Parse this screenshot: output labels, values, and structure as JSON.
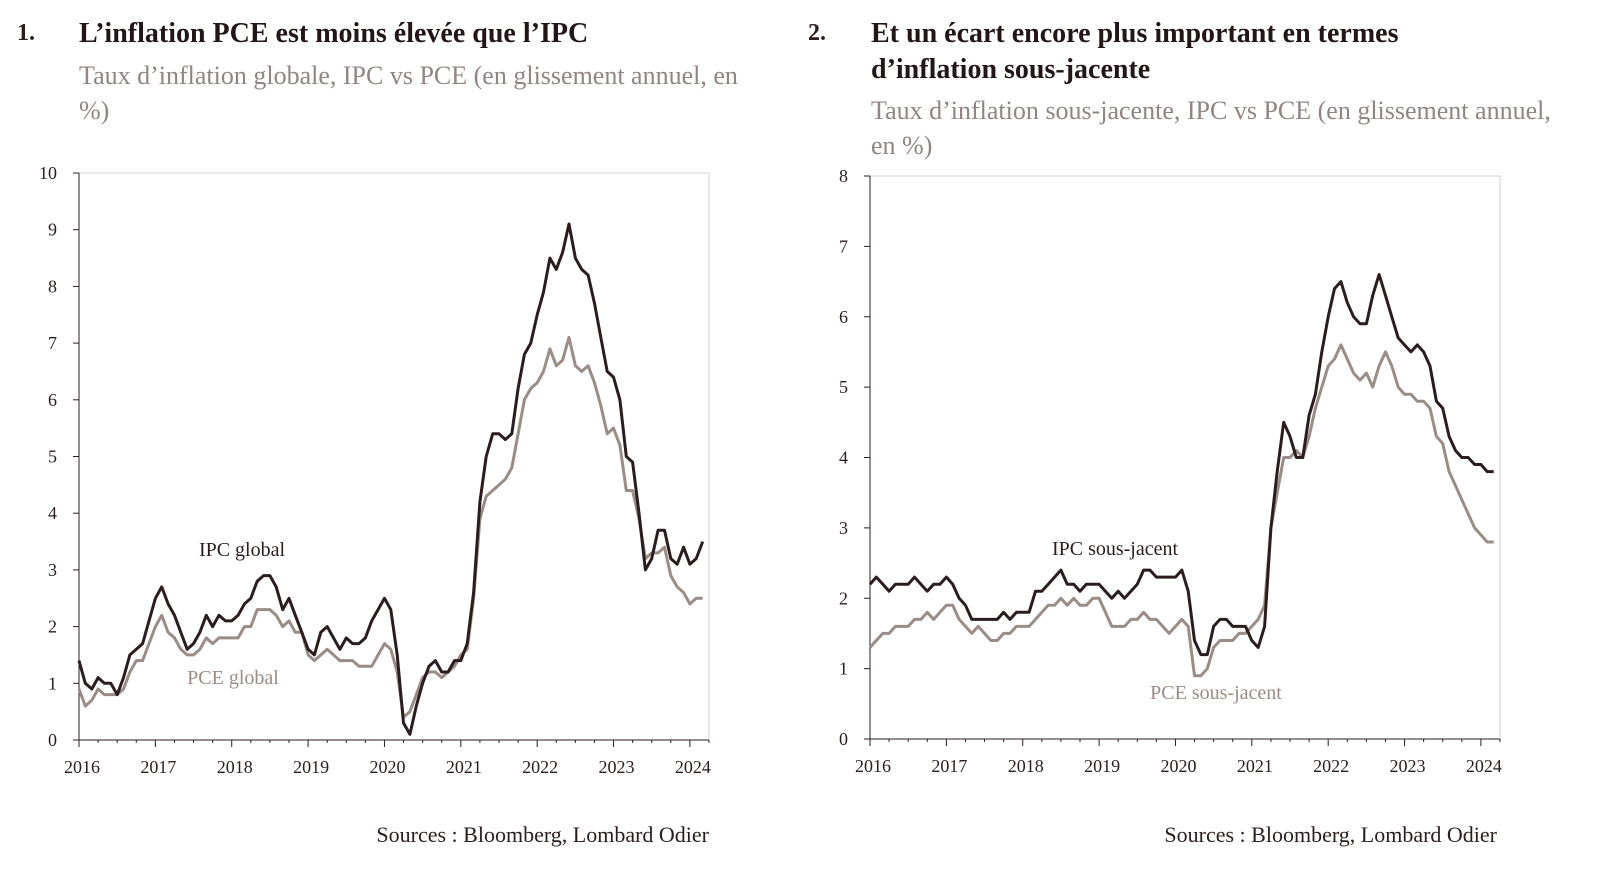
{
  "colors": {
    "ipc": "#2b1d1d",
    "pce": "#9a8c86",
    "title": "#231616",
    "subtitle": "#8f8683"
  },
  "chart_data": [
    {
      "type": "line",
      "number": "1.",
      "title": "L’inflation PCE est moins élevée que l’IPC",
      "subtitle": "Taux d’inflation globale, IPC vs PCE (en glissement annuel, en %)",
      "source": "Sources : Bloomberg, Lombard Odier",
      "ylim": [
        0,
        10
      ],
      "yticks": [
        "0",
        "1",
        "2",
        "3",
        "4",
        "5",
        "6",
        "7",
        "8",
        "9",
        "10"
      ],
      "xlim": [
        2016.0,
        2024.25
      ],
      "xticks": [
        "2016",
        "2017",
        "2018",
        "2019",
        "2020",
        "2021",
        "2022",
        "2023",
        "2024"
      ],
      "grid": false,
      "series": [
        {
          "name": "IPC global",
          "x": [
            2016.0,
            2016.083,
            2016.167,
            2016.25,
            2016.333,
            2016.417,
            2016.5,
            2016.583,
            2016.667,
            2016.75,
            2016.833,
            2016.917,
            2017.0,
            2017.083,
            2017.167,
            2017.25,
            2017.333,
            2017.417,
            2017.5,
            2017.583,
            2017.667,
            2017.75,
            2017.833,
            2017.917,
            2018.0,
            2018.083,
            2018.167,
            2018.25,
            2018.333,
            2018.417,
            2018.5,
            2018.583,
            2018.667,
            2018.75,
            2018.833,
            2018.917,
            2019.0,
            2019.083,
            2019.167,
            2019.25,
            2019.333,
            2019.417,
            2019.5,
            2019.583,
            2019.667,
            2019.75,
            2019.833,
            2019.917,
            2020.0,
            2020.083,
            2020.167,
            2020.25,
            2020.333,
            2020.417,
            2020.5,
            2020.583,
            2020.667,
            2020.75,
            2020.833,
            2020.917,
            2021.0,
            2021.083,
            2021.167,
            2021.25,
            2021.333,
            2021.417,
            2021.5,
            2021.583,
            2021.667,
            2021.75,
            2021.833,
            2021.917,
            2022.0,
            2022.083,
            2022.167,
            2022.25,
            2022.333,
            2022.417,
            2022.5,
            2022.583,
            2022.667,
            2022.75,
            2022.833,
            2022.917,
            2023.0,
            2023.083,
            2023.167,
            2023.25,
            2023.333,
            2023.417,
            2023.5,
            2023.583,
            2023.667,
            2023.75,
            2023.833,
            2023.917,
            2024.0,
            2024.083,
            2024.167
          ],
          "y": [
            1.4,
            1.0,
            0.9,
            1.1,
            1.0,
            1.0,
            0.8,
            1.1,
            1.5,
            1.6,
            1.7,
            2.1,
            2.5,
            2.7,
            2.4,
            2.2,
            1.9,
            1.6,
            1.7,
            1.9,
            2.2,
            2.0,
            2.2,
            2.1,
            2.1,
            2.2,
            2.4,
            2.5,
            2.8,
            2.9,
            2.9,
            2.7,
            2.3,
            2.5,
            2.2,
            1.9,
            1.6,
            1.5,
            1.9,
            2.0,
            1.8,
            1.6,
            1.8,
            1.7,
            1.7,
            1.8,
            2.1,
            2.3,
            2.5,
            2.3,
            1.5,
            0.3,
            0.1,
            0.6,
            1.0,
            1.3,
            1.4,
            1.2,
            1.2,
            1.4,
            1.4,
            1.7,
            2.6,
            4.2,
            5.0,
            5.4,
            5.4,
            5.3,
            5.4,
            6.2,
            6.8,
            7.0,
            7.5,
            7.9,
            8.5,
            8.3,
            8.6,
            9.1,
            8.5,
            8.3,
            8.2,
            7.7,
            7.1,
            6.5,
            6.4,
            6.0,
            5.0,
            4.9,
            4.0,
            3.0,
            3.2,
            3.7,
            3.7,
            3.2,
            3.1,
            3.4,
            3.1,
            3.2,
            3.5
          ]
        },
        {
          "name": "PCE global",
          "x": [
            2016.0,
            2016.083,
            2016.167,
            2016.25,
            2016.333,
            2016.417,
            2016.5,
            2016.583,
            2016.667,
            2016.75,
            2016.833,
            2016.917,
            2017.0,
            2017.083,
            2017.167,
            2017.25,
            2017.333,
            2017.417,
            2017.5,
            2017.583,
            2017.667,
            2017.75,
            2017.833,
            2017.917,
            2018.0,
            2018.083,
            2018.167,
            2018.25,
            2018.333,
            2018.417,
            2018.5,
            2018.583,
            2018.667,
            2018.75,
            2018.833,
            2018.917,
            2019.0,
            2019.083,
            2019.167,
            2019.25,
            2019.333,
            2019.417,
            2019.5,
            2019.583,
            2019.667,
            2019.75,
            2019.833,
            2019.917,
            2020.0,
            2020.083,
            2020.167,
            2020.25,
            2020.333,
            2020.417,
            2020.5,
            2020.583,
            2020.667,
            2020.75,
            2020.833,
            2020.917,
            2021.0,
            2021.083,
            2021.167,
            2021.25,
            2021.333,
            2021.417,
            2021.5,
            2021.583,
            2021.667,
            2021.75,
            2021.833,
            2021.917,
            2022.0,
            2022.083,
            2022.167,
            2022.25,
            2022.333,
            2022.417,
            2022.5,
            2022.583,
            2022.667,
            2022.75,
            2022.833,
            2022.917,
            2023.0,
            2023.083,
            2023.167,
            2023.25,
            2023.333,
            2023.417,
            2023.5,
            2023.583,
            2023.667,
            2023.75,
            2023.833,
            2023.917,
            2024.0,
            2024.083,
            2024.167
          ],
          "y": [
            0.9,
            0.6,
            0.7,
            0.9,
            0.8,
            0.8,
            0.8,
            0.9,
            1.2,
            1.4,
            1.4,
            1.7,
            2.0,
            2.2,
            1.9,
            1.8,
            1.6,
            1.5,
            1.5,
            1.6,
            1.8,
            1.7,
            1.8,
            1.8,
            1.8,
            1.8,
            2.0,
            2.0,
            2.3,
            2.3,
            2.3,
            2.2,
            2.0,
            2.1,
            1.9,
            1.9,
            1.5,
            1.4,
            1.5,
            1.6,
            1.5,
            1.4,
            1.4,
            1.4,
            1.3,
            1.3,
            1.3,
            1.5,
            1.7,
            1.6,
            1.2,
            0.4,
            0.5,
            0.8,
            1.1,
            1.2,
            1.2,
            1.1,
            1.2,
            1.3,
            1.5,
            1.6,
            2.5,
            3.9,
            4.3,
            4.4,
            4.5,
            4.6,
            4.8,
            5.4,
            6.0,
            6.2,
            6.3,
            6.5,
            6.9,
            6.6,
            6.7,
            7.1,
            6.6,
            6.5,
            6.6,
            6.3,
            5.9,
            5.4,
            5.5,
            5.2,
            4.4,
            4.4,
            3.9,
            3.2,
            3.3,
            3.3,
            3.4,
            2.9,
            2.7,
            2.6,
            2.4,
            2.5,
            2.5
          ]
        }
      ],
      "labels": {
        "ipc": "IPC global",
        "pce": "PCE global"
      }
    },
    {
      "type": "line",
      "number": "2.",
      "title": "Et un écart encore plus important en termes d’inflation sous-jacente",
      "title_lines": [
        "Et un écart encore plus important en termes",
        "d’inflation sous-jacente"
      ],
      "subtitle": "Taux d’inflation sous-jacente, IPC vs PCE (en glissement annuel, en %)",
      "source": "Sources : Bloomberg, Lombard Odier",
      "ylim": [
        0,
        8
      ],
      "yticks": [
        "0",
        "1",
        "2",
        "3",
        "4",
        "5",
        "6",
        "7",
        "8"
      ],
      "xlim": [
        2016.0,
        2024.25
      ],
      "xticks": [
        "2016",
        "2017",
        "2018",
        "2019",
        "2020",
        "2021",
        "2022",
        "2023",
        "2024"
      ],
      "grid": false,
      "series": [
        {
          "name": "IPC sous-jacent",
          "x": [
            2016.0,
            2016.083,
            2016.167,
            2016.25,
            2016.333,
            2016.417,
            2016.5,
            2016.583,
            2016.667,
            2016.75,
            2016.833,
            2016.917,
            2017.0,
            2017.083,
            2017.167,
            2017.25,
            2017.333,
            2017.417,
            2017.5,
            2017.583,
            2017.667,
            2017.75,
            2017.833,
            2017.917,
            2018.0,
            2018.083,
            2018.167,
            2018.25,
            2018.333,
            2018.417,
            2018.5,
            2018.583,
            2018.667,
            2018.75,
            2018.833,
            2018.917,
            2019.0,
            2019.083,
            2019.167,
            2019.25,
            2019.333,
            2019.417,
            2019.5,
            2019.583,
            2019.667,
            2019.75,
            2019.833,
            2019.917,
            2020.0,
            2020.083,
            2020.167,
            2020.25,
            2020.333,
            2020.417,
            2020.5,
            2020.583,
            2020.667,
            2020.75,
            2020.833,
            2020.917,
            2021.0,
            2021.083,
            2021.167,
            2021.25,
            2021.333,
            2021.417,
            2021.5,
            2021.583,
            2021.667,
            2021.75,
            2021.833,
            2021.917,
            2022.0,
            2022.083,
            2022.167,
            2022.25,
            2022.333,
            2022.417,
            2022.5,
            2022.583,
            2022.667,
            2022.75,
            2022.833,
            2022.917,
            2023.0,
            2023.083,
            2023.167,
            2023.25,
            2023.333,
            2023.417,
            2023.5,
            2023.583,
            2023.667,
            2023.75,
            2023.833,
            2023.917,
            2024.0,
            2024.083,
            2024.167
          ],
          "y": [
            2.2,
            2.3,
            2.2,
            2.1,
            2.2,
            2.2,
            2.2,
            2.3,
            2.2,
            2.1,
            2.2,
            2.2,
            2.3,
            2.2,
            2.0,
            1.9,
            1.7,
            1.7,
            1.7,
            1.7,
            1.7,
            1.8,
            1.7,
            1.8,
            1.8,
            1.8,
            2.1,
            2.1,
            2.2,
            2.3,
            2.4,
            2.2,
            2.2,
            2.1,
            2.2,
            2.2,
            2.2,
            2.1,
            2.0,
            2.1,
            2.0,
            2.1,
            2.2,
            2.4,
            2.4,
            2.3,
            2.3,
            2.3,
            2.3,
            2.4,
            2.1,
            1.4,
            1.2,
            1.2,
            1.6,
            1.7,
            1.7,
            1.6,
            1.6,
            1.6,
            1.4,
            1.3,
            1.6,
            3.0,
            3.8,
            4.5,
            4.3,
            4.0,
            4.0,
            4.6,
            4.9,
            5.5,
            6.0,
            6.4,
            6.5,
            6.2,
            6.0,
            5.9,
            5.9,
            6.3,
            6.6,
            6.3,
            6.0,
            5.7,
            5.6,
            5.5,
            5.6,
            5.5,
            5.3,
            4.8,
            4.7,
            4.3,
            4.1,
            4.0,
            4.0,
            3.9,
            3.9,
            3.8,
            3.8
          ]
        },
        {
          "name": "PCE sous-jacent",
          "x": [
            2016.0,
            2016.083,
            2016.167,
            2016.25,
            2016.333,
            2016.417,
            2016.5,
            2016.583,
            2016.667,
            2016.75,
            2016.833,
            2016.917,
            2017.0,
            2017.083,
            2017.167,
            2017.25,
            2017.333,
            2017.417,
            2017.5,
            2017.583,
            2017.667,
            2017.75,
            2017.833,
            2017.917,
            2018.0,
            2018.083,
            2018.167,
            2018.25,
            2018.333,
            2018.417,
            2018.5,
            2018.583,
            2018.667,
            2018.75,
            2018.833,
            2018.917,
            2019.0,
            2019.083,
            2019.167,
            2019.25,
            2019.333,
            2019.417,
            2019.5,
            2019.583,
            2019.667,
            2019.75,
            2019.833,
            2019.917,
            2020.0,
            2020.083,
            2020.167,
            2020.25,
            2020.333,
            2020.417,
            2020.5,
            2020.583,
            2020.667,
            2020.75,
            2020.833,
            2020.917,
            2021.0,
            2021.083,
            2021.167,
            2021.25,
            2021.333,
            2021.417,
            2021.5,
            2021.583,
            2021.667,
            2021.75,
            2021.833,
            2021.917,
            2022.0,
            2022.083,
            2022.167,
            2022.25,
            2022.333,
            2022.417,
            2022.5,
            2022.583,
            2022.667,
            2022.75,
            2022.833,
            2022.917,
            2023.0,
            2023.083,
            2023.167,
            2023.25,
            2023.333,
            2023.417,
            2023.5,
            2023.583,
            2023.667,
            2023.75,
            2023.833,
            2023.917,
            2024.0,
            2024.083,
            2024.167
          ],
          "y": [
            1.3,
            1.4,
            1.5,
            1.5,
            1.6,
            1.6,
            1.6,
            1.7,
            1.7,
            1.8,
            1.7,
            1.8,
            1.9,
            1.9,
            1.7,
            1.6,
            1.5,
            1.6,
            1.5,
            1.4,
            1.4,
            1.5,
            1.5,
            1.6,
            1.6,
            1.6,
            1.7,
            1.8,
            1.9,
            1.9,
            2.0,
            1.9,
            2.0,
            1.9,
            1.9,
            2.0,
            2.0,
            1.8,
            1.6,
            1.6,
            1.6,
            1.7,
            1.7,
            1.8,
            1.7,
            1.7,
            1.6,
            1.5,
            1.6,
            1.7,
            1.6,
            0.9,
            0.9,
            1.0,
            1.3,
            1.4,
            1.4,
            1.4,
            1.5,
            1.5,
            1.6,
            1.7,
            1.9,
            3.0,
            3.5,
            4.0,
            4.0,
            4.1,
            4.0,
            4.3,
            4.7,
            5.0,
            5.3,
            5.4,
            5.6,
            5.4,
            5.2,
            5.1,
            5.2,
            5.0,
            5.3,
            5.5,
            5.3,
            5.0,
            4.9,
            4.9,
            4.8,
            4.8,
            4.7,
            4.3,
            4.2,
            3.8,
            3.6,
            3.4,
            3.2,
            3.0,
            2.9,
            2.8,
            2.8
          ]
        }
      ],
      "labels": {
        "ipc": "IPC sous-jacent",
        "pce": "PCE sous-jacent"
      }
    }
  ]
}
